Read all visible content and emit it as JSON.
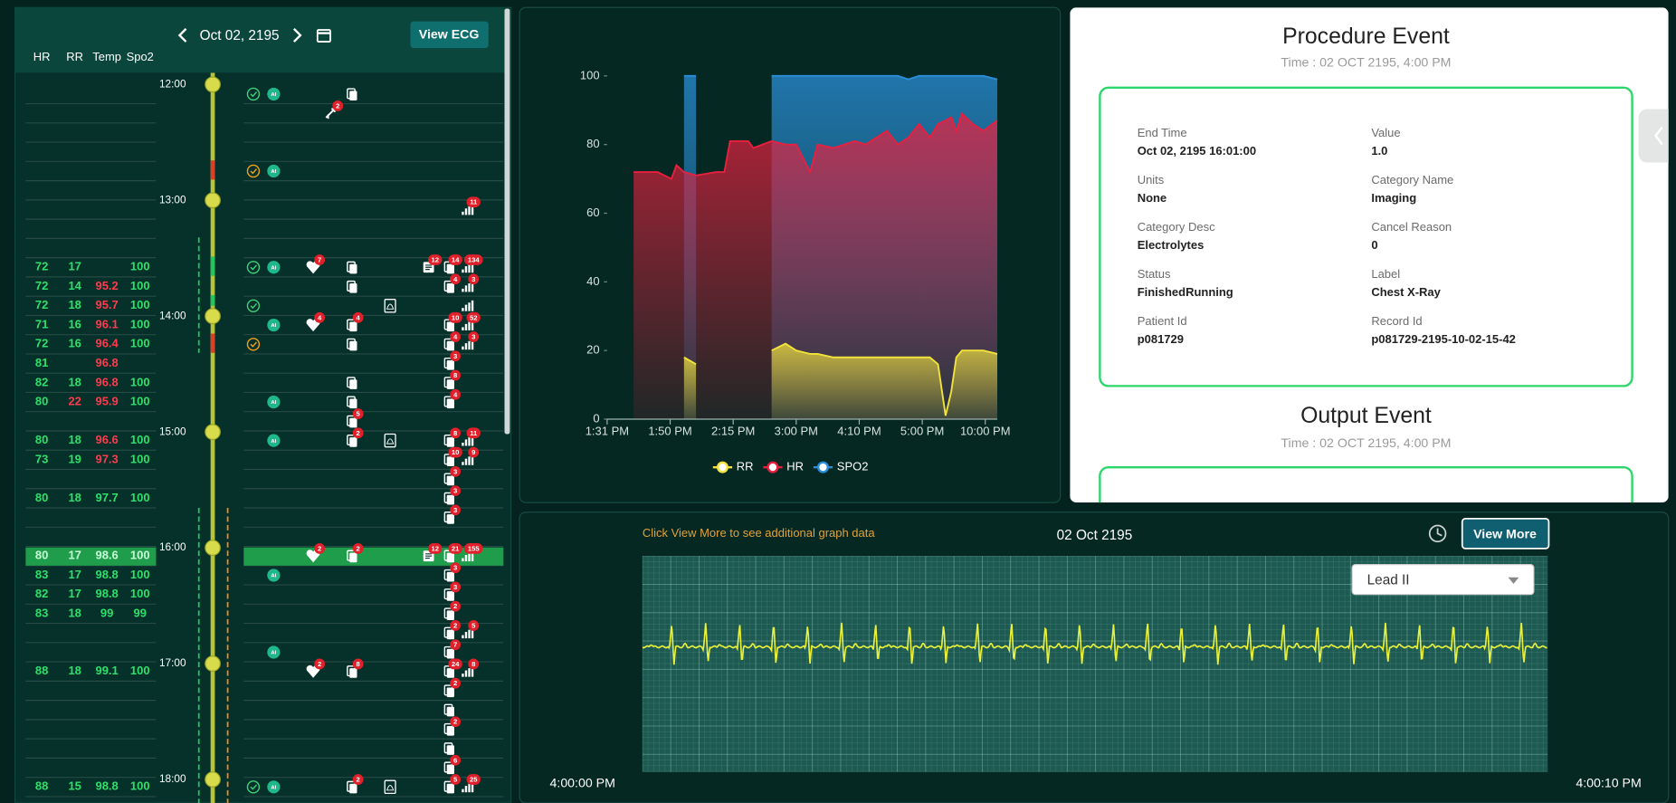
{
  "left_panel": {
    "date": "Oct 02, 2195",
    "view_ecg": "View ECG",
    "columns": [
      "HR",
      "RR",
      "Temp",
      "Spo2"
    ],
    "hours": [
      "12:00",
      "13:00",
      "14:00",
      "15:00",
      "16:00",
      "17:00",
      "18:00"
    ],
    "ai_text": "AI",
    "slots": [
      {
        "events": [
          {
            "icon": "check"
          },
          {
            "icon": "ai"
          },
          {
            "icon": "doc"
          }
        ]
      },
      {
        "events": [
          {
            "icon": "transfer",
            "badge": 2
          }
        ]
      },
      {},
      {},
      {
        "events": [
          {
            "icon": "check-warn"
          },
          {
            "icon": "ai"
          }
        ]
      },
      {},
      {
        "events": [
          {
            "icon": "bars",
            "badge": 11
          }
        ]
      },
      {},
      {},
      {
        "vitals": [
          72,
          17,
          null,
          100
        ],
        "events": [
          {
            "icon": "check"
          },
          {
            "icon": "ai"
          },
          {
            "icon": "heart",
            "badge": 7
          },
          {
            "icon": "doc"
          },
          {
            "icon": "note",
            "badge": 12
          },
          {
            "icon": "doc-stack",
            "badge": 14
          },
          {
            "icon": "bars",
            "badge": 134
          }
        ]
      },
      {
        "vitals": [
          72,
          14,
          95.2,
          100
        ],
        "alerts": [
          2
        ],
        "events": [
          {
            "icon": "doc"
          },
          {
            "icon": "doc-stack",
            "badge": 4
          },
          {
            "icon": "bars",
            "badge": 3
          }
        ]
      },
      {
        "vitals": [
          72,
          18,
          95.7,
          100
        ],
        "alerts": [
          2
        ],
        "events": [
          {
            "icon": "check"
          },
          {
            "icon": "pdf"
          },
          {
            "icon": "bars"
          }
        ]
      },
      {
        "vitals": [
          71,
          16,
          96.1,
          100
        ],
        "alerts": [
          2
        ],
        "events": [
          {
            "icon": "ai"
          },
          {
            "icon": "heart",
            "badge": 4
          },
          {
            "icon": "doc",
            "badge": 4
          },
          {
            "icon": "doc-stack",
            "badge": 10
          },
          {
            "icon": "bars",
            "badge": 52
          }
        ]
      },
      {
        "vitals": [
          72,
          16,
          96.4,
          100
        ],
        "alerts": [
          2
        ],
        "events": [
          {
            "icon": "check-warn"
          },
          {
            "icon": "doc"
          },
          {
            "icon": "doc-stack",
            "badge": 4
          },
          {
            "icon": "bars",
            "badge": 3
          }
        ]
      },
      {
        "vitals": [
          81,
          null,
          96.8,
          null
        ],
        "alerts": [
          2
        ],
        "events": [
          {
            "icon": "doc-stack",
            "badge": 3
          }
        ]
      },
      {
        "vitals": [
          82,
          18,
          96.8,
          100
        ],
        "alerts": [
          2
        ],
        "events": [
          {
            "icon": "doc"
          },
          {
            "icon": "doc-stack",
            "badge": 8
          }
        ]
      },
      {
        "vitals": [
          80,
          22,
          95.9,
          100
        ],
        "alerts": [
          1,
          2
        ],
        "events": [
          {
            "icon": "ai"
          },
          {
            "icon": "doc"
          },
          {
            "icon": "doc-stack",
            "badge": 4
          }
        ]
      },
      {
        "events": [
          {
            "icon": "doc",
            "badge": 5
          }
        ]
      },
      {
        "vitals": [
          80,
          18,
          96.6,
          100
        ],
        "alerts": [
          2
        ],
        "events": [
          {
            "icon": "ai"
          },
          {
            "icon": "doc",
            "badge": 2
          },
          {
            "icon": "pdf"
          },
          {
            "icon": "doc-stack",
            "badge": 8
          },
          {
            "icon": "bars",
            "badge": 11
          }
        ]
      },
      {
        "vitals": [
          73,
          19,
          97.3,
          100
        ],
        "alerts": [
          2
        ],
        "events": [
          {
            "icon": "doc-stack",
            "badge": 10
          },
          {
            "icon": "bars",
            "badge": 9
          }
        ]
      },
      {
        "events": [
          {
            "icon": "doc-stack",
            "badge": 3
          }
        ]
      },
      {
        "vitals": [
          80,
          18,
          97.7,
          100
        ],
        "events": [
          {
            "icon": "doc-stack",
            "badge": 3
          }
        ]
      },
      {
        "events": [
          {
            "icon": "doc-stack",
            "badge": 3
          }
        ]
      },
      {},
      {
        "vitals": [
          80,
          17,
          98.6,
          100
        ],
        "selected": true,
        "events": [
          {
            "icon": "heart",
            "badge": 2
          },
          {
            "icon": "doc",
            "badge": 2
          },
          {
            "icon": "note",
            "badge": 12
          },
          {
            "icon": "doc-stack",
            "badge": 21
          },
          {
            "icon": "bars",
            "badge": 155
          }
        ]
      },
      {
        "vitals": [
          83,
          17,
          98.8,
          100
        ],
        "events": [
          {
            "icon": "ai"
          },
          {
            "icon": "doc-stack",
            "badge": 3
          }
        ]
      },
      {
        "vitals": [
          82,
          17,
          98.8,
          100
        ],
        "events": [
          {
            "icon": "doc-stack",
            "badge": 3
          }
        ]
      },
      {
        "vitals": [
          83,
          18,
          99,
          99
        ],
        "events": [
          {
            "icon": "doc-stack",
            "badge": 2
          }
        ]
      },
      {
        "events": [
          {
            "icon": "doc-stack",
            "badge": 2
          },
          {
            "icon": "bars",
            "badge": 5
          }
        ]
      },
      {
        "events": [
          {
            "icon": "ai"
          },
          {
            "icon": "doc-stack",
            "badge": 7
          }
        ]
      },
      {
        "vitals": [
          88,
          18,
          99.1,
          100
        ],
        "events": [
          {
            "icon": "heart",
            "badge": 2
          },
          {
            "icon": "doc",
            "badge": 8
          },
          {
            "icon": "doc-stack",
            "badge": 24
          },
          {
            "icon": "bars",
            "badge": 8
          }
        ]
      },
      {
        "events": [
          {
            "icon": "doc-stack",
            "badge": 2
          }
        ]
      },
      {
        "events": [
          {
            "icon": "doc-stack"
          }
        ]
      },
      {
        "events": [
          {
            "icon": "doc-stack",
            "badge": 2
          }
        ]
      },
      {
        "events": [
          {
            "icon": "doc-stack"
          }
        ]
      },
      {
        "events": [
          {
            "icon": "doc-stack",
            "badge": 6
          }
        ]
      },
      {
        "vitals": [
          88,
          15,
          98.8,
          100
        ],
        "events": [
          {
            "icon": "check"
          },
          {
            "icon": "ai"
          },
          {
            "icon": "doc",
            "badge": 2
          },
          {
            "icon": "pdf"
          },
          {
            "icon": "doc-stack",
            "badge": 5
          },
          {
            "icon": "bars",
            "badge": 25
          }
        ]
      }
    ]
  },
  "chart_data": {
    "type": "area",
    "x": [
      0.42,
      0.8,
      1.02,
      1.1,
      1.22,
      1.41,
      1.73,
      1.86,
      1.95,
      2.24,
      2.32,
      2.61,
      2.83,
      3.0,
      3.22,
      3.34,
      3.59,
      3.93,
      4.1,
      4.44,
      4.61,
      4.78,
      4.95,
      5.12,
      5.25,
      5.37,
      5.46,
      5.54,
      5.63,
      5.8,
      5.97,
      6.19
    ],
    "xlim": [
      0,
      6.19
    ],
    "xticks": [
      {
        "value": 0,
        "label": "1:31 PM"
      },
      {
        "value": 1,
        "label": "1:50 PM"
      },
      {
        "value": 2,
        "label": "2:15 PM"
      },
      {
        "value": 3,
        "label": "3:00 PM"
      },
      {
        "value": 4,
        "label": "4:10 PM"
      },
      {
        "value": 5,
        "label": "5:00 PM"
      },
      {
        "value": 6,
        "label": "10:00 PM"
      }
    ],
    "ylim": [
      0,
      100
    ],
    "yticks": [
      0,
      20,
      40,
      60,
      80,
      100
    ],
    "series": [
      {
        "name": "RR",
        "color": "#f2e33c",
        "values": [
          null,
          null,
          null,
          null,
          18,
          16,
          null,
          null,
          null,
          null,
          null,
          20,
          22,
          20,
          19,
          19,
          18,
          18,
          18,
          18,
          18,
          18,
          18,
          18,
          16,
          1,
          8,
          18,
          20,
          20,
          20,
          19
        ]
      },
      {
        "name": "HR",
        "color": "#e8203f",
        "values": [
          72,
          72,
          70,
          74,
          72,
          71,
          72,
          72,
          81,
          81,
          79,
          81,
          80,
          80,
          72,
          80,
          79,
          81,
          80,
          84,
          80,
          82,
          86,
          82,
          86,
          87,
          88,
          84,
          89,
          86,
          84,
          87
        ]
      },
      {
        "name": "SPO2",
        "color": "#2a8fd8",
        "values": [
          null,
          null,
          null,
          null,
          100,
          100,
          null,
          null,
          null,
          null,
          null,
          100,
          100,
          100,
          100,
          100,
          100,
          100,
          100,
          100,
          100,
          99,
          100,
          100,
          100,
          100,
          100,
          100,
          100,
          100,
          100,
          99
        ]
      }
    ]
  },
  "detail_panel": {
    "procedure": {
      "title": "Procedure Event",
      "time": "Time : 02 OCT 2195, 4:00 PM",
      "fields": [
        {
          "label": "End Time",
          "value": "Oct 02, 2195 16:01:00"
        },
        {
          "label": "Value",
          "value": "1.0"
        },
        {
          "label": "Units",
          "value": "None"
        },
        {
          "label": "Category Name",
          "value": "Imaging"
        },
        {
          "label": "Category Desc",
          "value": "Electrolytes"
        },
        {
          "label": "Cancel Reason",
          "value": "0"
        },
        {
          "label": "Status",
          "value": "FinishedRunning"
        },
        {
          "label": "Label",
          "value": "Chest X-Ray"
        },
        {
          "label": "Patient Id",
          "value": "p081729"
        },
        {
          "label": "Record Id",
          "value": "p081729-2195-10-02-15-42"
        }
      ]
    },
    "output": {
      "title": "Output Event",
      "time": "Time : 02 OCT 2195, 4:00 PM"
    }
  },
  "ecg_panel": {
    "hint": "Click View More to see additional graph data",
    "date": "02 Oct 2195",
    "view_more": "View More",
    "lead": "Lead II",
    "start_time": "4:00:00 PM",
    "end_time": "4:00:10 PM"
  }
}
